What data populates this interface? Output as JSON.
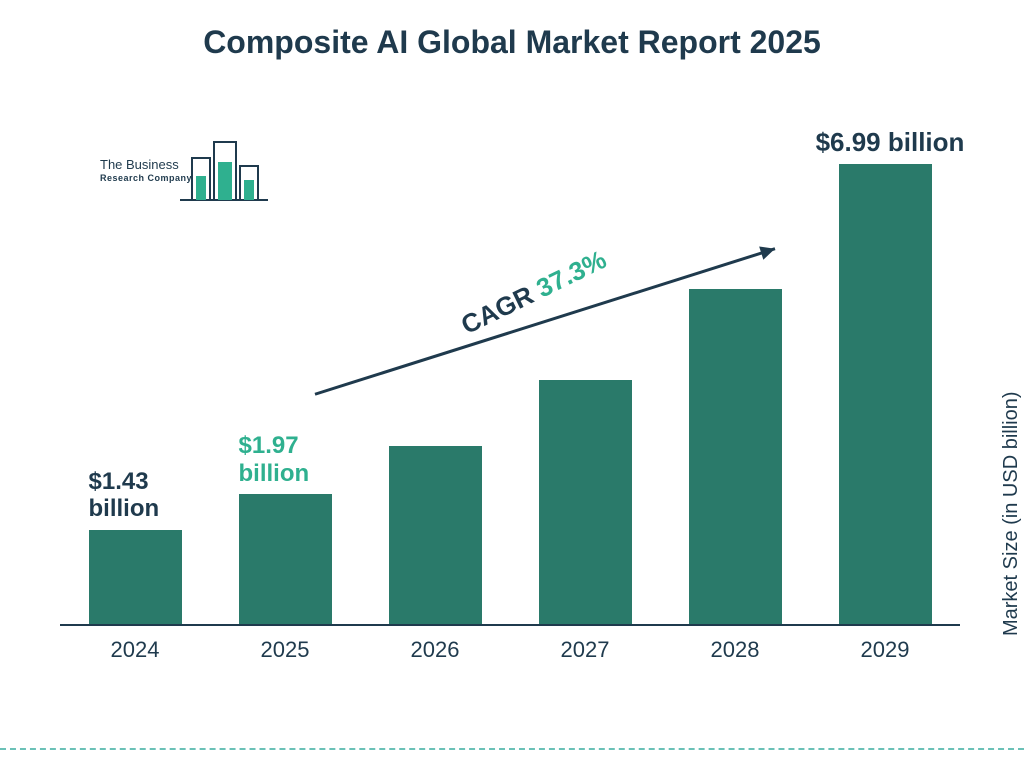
{
  "title": {
    "text": "Composite AI Global Market Report 2025",
    "fontsize": 32,
    "color": "#1f3a4d",
    "weight": "700"
  },
  "y_axis_label": {
    "text": "Market Size (in USD billion)",
    "fontsize": 20,
    "color": "#1f3a4d"
  },
  "chart": {
    "type": "bar",
    "categories": [
      "2024",
      "2025",
      "2026",
      "2027",
      "2028",
      "2029"
    ],
    "values": [
      1.43,
      1.97,
      2.7,
      3.71,
      5.09,
      6.99
    ],
    "ylim": [
      0,
      7.5
    ],
    "bar_color": "#2a7a6a",
    "bar_width_ratio": 0.62,
    "baseline_color": "#1f3a4d",
    "background_color": "#ffffff",
    "category_fontsize": 22,
    "category_color": "#1f3a4d"
  },
  "value_labels": [
    {
      "text_line1": "$1.43",
      "text_line2": "billion",
      "color": "#1f3a4d",
      "fontsize": 24,
      "bar_index": 0
    },
    {
      "text_line1": "$1.97",
      "text_line2": "billion",
      "color": "#2fb08f",
      "fontsize": 24,
      "bar_index": 1
    },
    {
      "text_line1": "$6.99 billion",
      "text_line2": "",
      "color": "#1f3a4d",
      "fontsize": 26,
      "bar_index": 5
    }
  ],
  "cagr": {
    "prefix": "CAGR ",
    "value": "37.3%",
    "prefix_color": "#1f3a4d",
    "value_color": "#2fb08f",
    "fontsize": 26,
    "arrow_color": "#1f3a4d",
    "arrow_from_bar": 1,
    "arrow_to_bar": 4,
    "rotation_deg": -26
  },
  "logo": {
    "line1": "The Business",
    "line2": "Research Company",
    "bar_fill": "#2fb08f",
    "outline_color": "#1f3a4d"
  },
  "footer_rule_color": "#2da89a"
}
